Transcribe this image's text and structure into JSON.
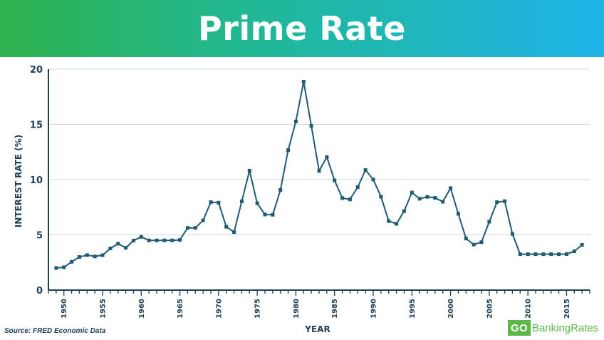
{
  "header": {
    "title": "Prime Rate"
  },
  "footer": {
    "source": "Source: FRED Economic Data",
    "logo_go": "GO",
    "logo_rest": "BankingRates"
  },
  "colors": {
    "line": "#1f5b73",
    "marker": "#1f5b73",
    "grid": "#cfd8e0",
    "axis_text": "#1f3f57"
  },
  "chart_data": {
    "type": "line",
    "title": "Prime Rate",
    "xlabel": "YEAR",
    "ylabel": "INTEREST RATE (%)",
    "xlim": [
      1948,
      2018
    ],
    "ylim": [
      0,
      20
    ],
    "yticks": [
      0,
      5,
      10,
      15,
      20
    ],
    "xticks": [
      1950,
      1955,
      1960,
      1965,
      1970,
      1975,
      1980,
      1985,
      1990,
      1995,
      2000,
      2005,
      2010,
      2015
    ],
    "grid": true,
    "series": [
      {
        "x": [
          1949,
          1950,
          1951,
          1952,
          1953,
          1954,
          1955,
          1956,
          1957,
          1958,
          1959,
          1960,
          1961,
          1962,
          1963,
          1964,
          1965,
          1966,
          1967,
          1968,
          1969,
          1970,
          1971,
          1972,
          1973,
          1974,
          1975,
          1976,
          1977,
          1978,
          1979,
          1980,
          1981,
          1982,
          1983,
          1984,
          1985,
          1986,
          1987,
          1988,
          1989,
          1990,
          1991,
          1992,
          1993,
          1994,
          1995,
          1996,
          1997,
          1998,
          1999,
          2000,
          2001,
          2002,
          2003,
          2004,
          2005,
          2006,
          2007,
          2008,
          2009,
          2010,
          2011,
          2012,
          2013,
          2014,
          2015,
          2016,
          2017
        ],
        "values": [
          2.0,
          2.07,
          2.56,
          3.0,
          3.17,
          3.05,
          3.16,
          3.77,
          4.2,
          3.83,
          4.48,
          4.82,
          4.5,
          4.5,
          4.5,
          4.5,
          4.54,
          5.63,
          5.63,
          6.31,
          7.96,
          7.91,
          5.73,
          5.25,
          8.03,
          10.81,
          7.86,
          6.84,
          6.82,
          9.06,
          12.67,
          15.27,
          18.87,
          14.86,
          10.79,
          12.04,
          9.93,
          8.33,
          8.21,
          9.32,
          10.87,
          10.01,
          8.46,
          6.25,
          6.0,
          7.15,
          8.83,
          8.27,
          8.44,
          8.35,
          8.0,
          9.23,
          6.91,
          4.67,
          4.12,
          4.34,
          6.19,
          7.96,
          8.05,
          5.09,
          3.25,
          3.25,
          3.25,
          3.25,
          3.25,
          3.25,
          3.26,
          3.51,
          4.1
        ]
      }
    ]
  }
}
